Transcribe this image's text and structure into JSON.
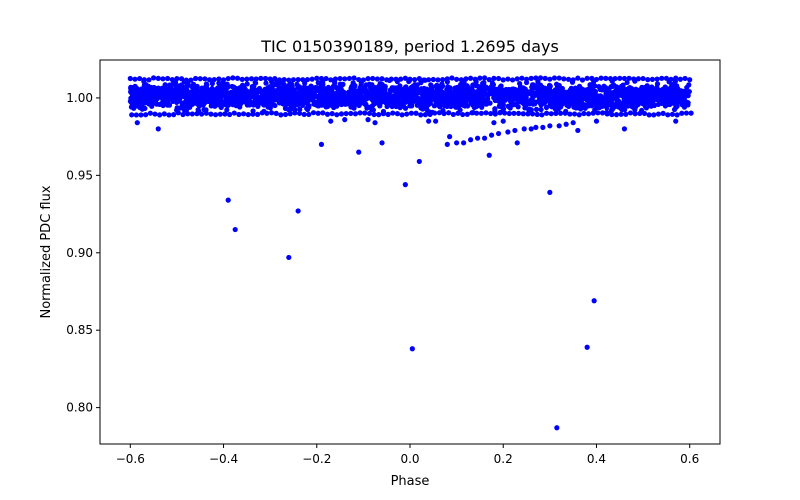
{
  "chart_data": {
    "type": "scatter",
    "title": "TIC 0150390189, period 1.2695 days",
    "xlabel": "Phase",
    "ylabel": "Normalized PDC flux",
    "xlim": [
      -0.665,
      0.665
    ],
    "ylim": [
      0.7765,
      1.0245
    ],
    "xticks": [
      -0.6,
      -0.4,
      -0.2,
      0.0,
      0.2,
      0.4,
      0.6
    ],
    "xtick_labels": [
      "−0.6",
      "−0.4",
      "−0.2",
      "0.0",
      "0.2",
      "0.4",
      "0.6"
    ],
    "yticks": [
      0.8,
      0.85,
      0.9,
      0.95,
      1.0
    ],
    "ytick_labels": [
      "0.80",
      "0.85",
      "0.90",
      "0.95",
      "1.00"
    ],
    "grid": false,
    "legend": "none",
    "marker_color": "#0000ff",
    "series": [
      {
        "band": {
          "x_range": [
            -0.6,
            0.6
          ],
          "y_range": [
            0.989,
            1.013
          ],
          "description_points": 0
        },
        "outliers": [
          {
            "x": -0.585,
            "y": 0.984
          },
          {
            "x": -0.54,
            "y": 0.98
          },
          {
            "x": -0.39,
            "y": 0.934
          },
          {
            "x": -0.375,
            "y": 0.915
          },
          {
            "x": -0.26,
            "y": 0.897
          },
          {
            "x": -0.24,
            "y": 0.927
          },
          {
            "x": -0.19,
            "y": 0.97
          },
          {
            "x": -0.17,
            "y": 0.985
          },
          {
            "x": -0.14,
            "y": 0.986
          },
          {
            "x": -0.11,
            "y": 0.965
          },
          {
            "x": -0.09,
            "y": 0.986
          },
          {
            "x": -0.075,
            "y": 0.984
          },
          {
            "x": -0.06,
            "y": 0.971
          },
          {
            "x": -0.01,
            "y": 0.944
          },
          {
            "x": 0.005,
            "y": 0.838
          },
          {
            "x": 0.02,
            "y": 0.959
          },
          {
            "x": 0.04,
            "y": 0.985
          },
          {
            "x": 0.055,
            "y": 0.985
          },
          {
            "x": 0.08,
            "y": 0.97
          },
          {
            "x": 0.085,
            "y": 0.975
          },
          {
            "x": 0.1,
            "y": 0.971
          },
          {
            "x": 0.115,
            "y": 0.971
          },
          {
            "x": 0.13,
            "y": 0.973
          },
          {
            "x": 0.145,
            "y": 0.974
          },
          {
            "x": 0.16,
            "y": 0.974
          },
          {
            "x": 0.17,
            "y": 0.963
          },
          {
            "x": 0.175,
            "y": 0.976
          },
          {
            "x": 0.18,
            "y": 0.984
          },
          {
            "x": 0.19,
            "y": 0.977
          },
          {
            "x": 0.2,
            "y": 0.985
          },
          {
            "x": 0.21,
            "y": 0.978
          },
          {
            "x": 0.225,
            "y": 0.979
          },
          {
            "x": 0.23,
            "y": 0.971
          },
          {
            "x": 0.245,
            "y": 0.98
          },
          {
            "x": 0.26,
            "y": 0.98
          },
          {
            "x": 0.27,
            "y": 0.981
          },
          {
            "x": 0.285,
            "y": 0.981
          },
          {
            "x": 0.3,
            "y": 0.939
          },
          {
            "x": 0.3,
            "y": 0.982
          },
          {
            "x": 0.315,
            "y": 0.787
          },
          {
            "x": 0.32,
            "y": 0.982
          },
          {
            "x": 0.335,
            "y": 0.983
          },
          {
            "x": 0.35,
            "y": 0.984
          },
          {
            "x": 0.36,
            "y": 0.979
          },
          {
            "x": 0.38,
            "y": 0.839
          },
          {
            "x": 0.395,
            "y": 0.869
          },
          {
            "x": 0.4,
            "y": 0.985
          },
          {
            "x": 0.46,
            "y": 0.98
          },
          {
            "x": 0.57,
            "y": 0.985
          }
        ]
      }
    ]
  }
}
